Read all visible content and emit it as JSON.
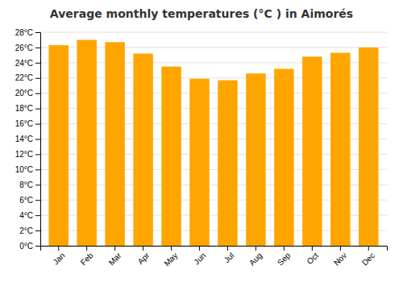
{
  "chart_data": {
    "type": "bar",
    "title": "Average monthly temperatures (°C ) in Aimorés",
    "categories": [
      "Jan",
      "Feb",
      "Mar",
      "Apr",
      "May",
      "Jun",
      "Jul",
      "Aug",
      "Sep",
      "Oct",
      "Nov",
      "Dec"
    ],
    "values": [
      26.3,
      27.0,
      26.7,
      25.2,
      23.5,
      21.9,
      21.7,
      22.6,
      23.2,
      24.8,
      25.3,
      26.0
    ],
    "color": "#FFA500",
    "ylim": [
      0,
      28
    ],
    "yticks": [
      {
        "value": 0,
        "label": "0°C"
      },
      {
        "value": 2,
        "label": "2°C"
      },
      {
        "value": 4,
        "label": "4°C"
      },
      {
        "value": 6,
        "label": "6°C"
      },
      {
        "value": 8,
        "label": "8°C"
      },
      {
        "value": 10,
        "label": "10°C"
      },
      {
        "value": 12,
        "label": "12°C"
      },
      {
        "value": 14,
        "label": "14°C"
      },
      {
        "value": 16,
        "label": "16°C"
      },
      {
        "value": 18,
        "label": "18°C"
      },
      {
        "value": 20,
        "label": "20°C"
      },
      {
        "value": 22,
        "label": "22°C"
      },
      {
        "value": 24,
        "label": "24°C"
      },
      {
        "value": 26,
        "label": "26°C"
      },
      {
        "value": 28,
        "label": "28°C"
      }
    ],
    "grid": true
  }
}
